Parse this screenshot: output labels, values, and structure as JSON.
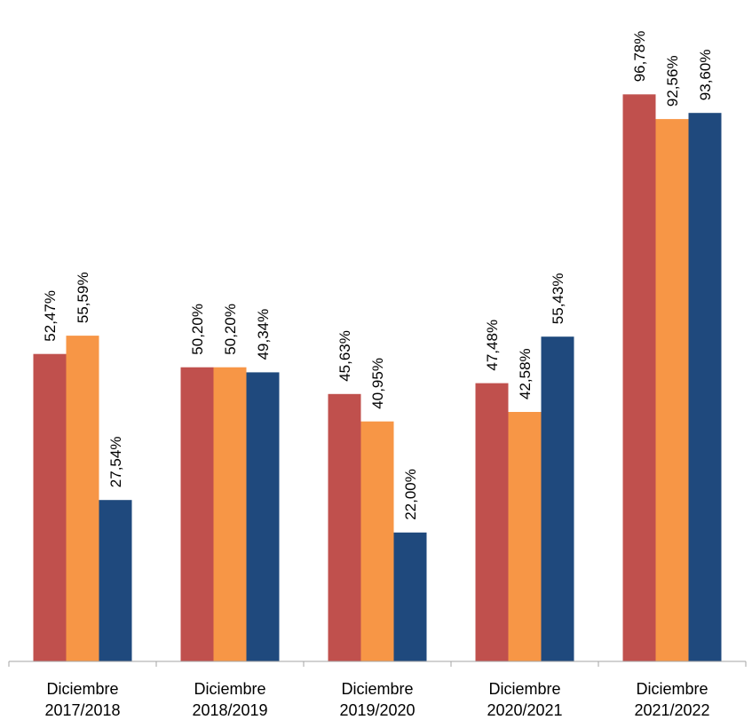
{
  "chart_data": {
    "type": "bar",
    "categories": [
      [
        "Diciembre",
        "2017/2018"
      ],
      [
        "Diciembre",
        "2018/2019"
      ],
      [
        "Diciembre",
        "2019/2020"
      ],
      [
        "Diciembre",
        "2020/2021"
      ],
      [
        "Diciembre",
        "2021/2022"
      ]
    ],
    "series": [
      {
        "color": "#c0504d",
        "values": [
          52.47,
          50.2,
          45.63,
          47.48,
          96.78
        ],
        "labels": [
          "52,47%",
          "50,20%",
          "45,63%",
          "47,48%",
          "96,78%"
        ]
      },
      {
        "color": "#f79646",
        "values": [
          55.59,
          50.2,
          40.95,
          42.58,
          92.56
        ],
        "labels": [
          "55,59%",
          "50,20%",
          "40,95%",
          "42,58%",
          "92,56%"
        ]
      },
      {
        "color": "#1f497d",
        "values": [
          27.54,
          49.34,
          22.0,
          55.43,
          93.6
        ],
        "labels": [
          "27,54%",
          "49,34%",
          "22,00%",
          "55,43%",
          "93,60%"
        ]
      }
    ],
    "title": "",
    "xlabel": "",
    "ylabel": "",
    "ylim": [
      0,
      100
    ],
    "grid": false,
    "legend": "none",
    "value_axis_visible": false
  }
}
